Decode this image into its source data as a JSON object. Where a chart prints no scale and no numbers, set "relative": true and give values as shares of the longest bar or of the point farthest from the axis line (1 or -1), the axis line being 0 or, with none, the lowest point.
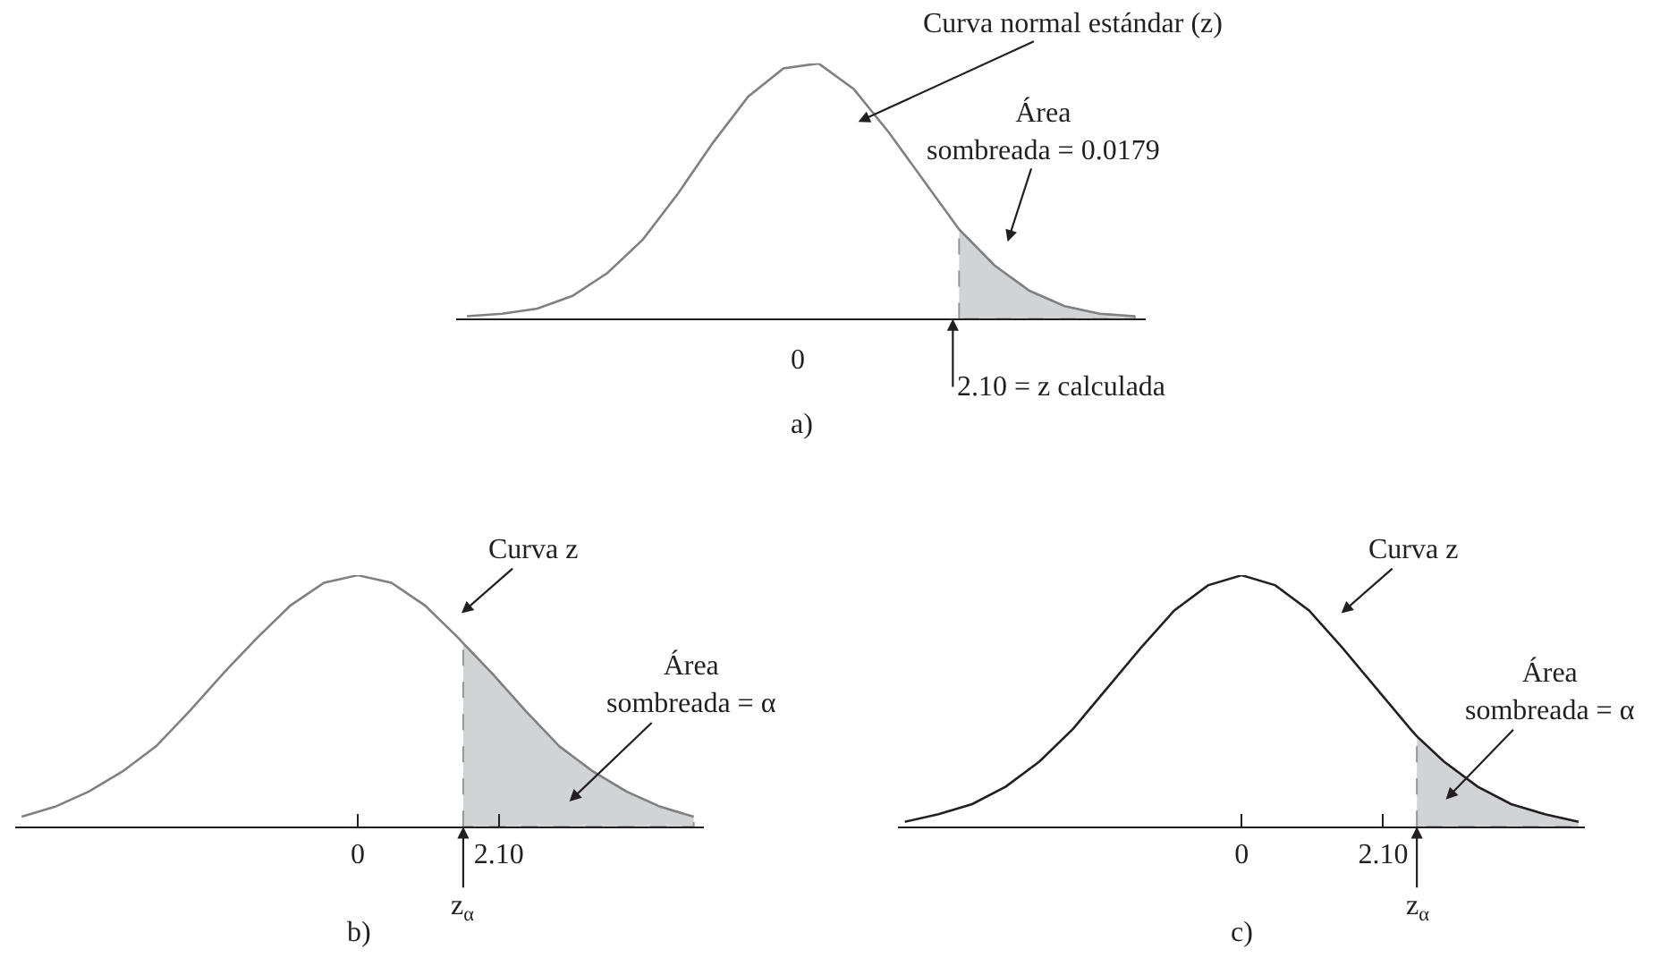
{
  "chart_data": [
    {
      "type": "line",
      "title": "a)",
      "relative": true,
      "categories": [
        null,
        null,
        null,
        null,
        null,
        null,
        null,
        null,
        null,
        null,
        null,
        null,
        null,
        null,
        null,
        null,
        null,
        null,
        null,
        null
      ],
      "series": [
        {
          "color": "#808080",
          "values": [
            0.01,
            0.02,
            0.04,
            0.09,
            0.18,
            0.31,
            0.49,
            0.69,
            0.87,
            0.98,
            1,
            0.9,
            0.73,
            0.54,
            0.35,
            0.21,
            0.11,
            0.05,
            0.02,
            0.01
          ]
        },
        {
          "type": "area",
          "color": "#d1d3d4",
          "line_style": "dashed",
          "values": [
            null,
            null,
            null,
            null,
            null,
            null,
            null,
            null,
            null,
            null,
            null,
            null,
            null,
            null,
            0.35,
            0.21,
            0.11,
            0.05,
            0.02,
            0.01
          ]
        }
      ],
      "annotations": [
        "Curva normal estándar (z)",
        "Área\nsombreada = 0.0179",
        "2.10 = z calculada",
        "0"
      ]
    },
    {
      "type": "line",
      "title": "b)",
      "relative": true,
      "xlim": [
        -5.1,
        5.15
      ],
      "xticks": [
        0,
        {
          "value": 2.1,
          "label": "2.10"
        }
      ],
      "series": [
        {
          "color": "#808080",
          "x": [
            -5,
            -4.5,
            -4,
            -3.5,
            -3,
            -2.5,
            -2,
            -1.5,
            -1,
            -0.5,
            0,
            0.5,
            1,
            1.5,
            1.57,
            2,
            2.5,
            3,
            3.5,
            4,
            4.5,
            5
          ],
          "values": [
            0.04,
            0.08,
            0.14,
            0.22,
            0.32,
            0.46,
            0.61,
            0.75,
            0.88,
            0.97,
            1,
            0.97,
            0.88,
            0.75,
            0.73,
            0.61,
            0.46,
            0.32,
            0.22,
            0.14,
            0.08,
            0.04
          ]
        },
        {
          "type": "area",
          "color": "#d1d3d4",
          "line_style": "dashed",
          "x": [
            1.57,
            2,
            2.5,
            3,
            3.5,
            4,
            4.5,
            5
          ],
          "values": [
            0.73,
            0.61,
            0.46,
            0.32,
            0.22,
            0.14,
            0.08,
            0.04
          ]
        }
      ],
      "annotations": [
        "Curva z",
        "Área\nsombreada = α",
        {
          "text": "z$_{α}$",
          "x": 1.57,
          "y": 0
        }
      ]
    },
    {
      "type": "line",
      "title": "c)",
      "relative": true,
      "xlim": [
        -5.1,
        5.1
      ],
      "xticks": [
        0,
        {
          "value": 2.1,
          "label": "2.10"
        }
      ],
      "series": [
        {
          "color": "#231f20",
          "x": [
            -5,
            -4.5,
            -4,
            -3.5,
            -3,
            -2.5,
            -2,
            -1.5,
            -1,
            -0.5,
            0,
            0.5,
            1,
            1.5,
            2,
            2.5,
            2.6,
            3,
            3.5,
            4,
            4.5,
            5
          ],
          "values": [
            0.02,
            0.05,
            0.09,
            0.16,
            0.26,
            0.39,
            0.55,
            0.71,
            0.86,
            0.96,
            1,
            0.96,
            0.86,
            0.71,
            0.55,
            0.39,
            0.36,
            0.26,
            0.16,
            0.09,
            0.05,
            0.02
          ]
        },
        {
          "type": "area",
          "color": "#d1d3d4",
          "line_style": "dashed",
          "x": [
            2.6,
            3,
            3.5,
            4,
            4.5,
            5
          ],
          "values": [
            0.36,
            0.26,
            0.16,
            0.09,
            0.05,
            0.02
          ]
        }
      ],
      "annotations": [
        "Curva z",
        "Área\nsombreada = α",
        {
          "text": "z$_{α}$",
          "x": 2.6,
          "y": 0
        }
      ]
    }
  ]
}
